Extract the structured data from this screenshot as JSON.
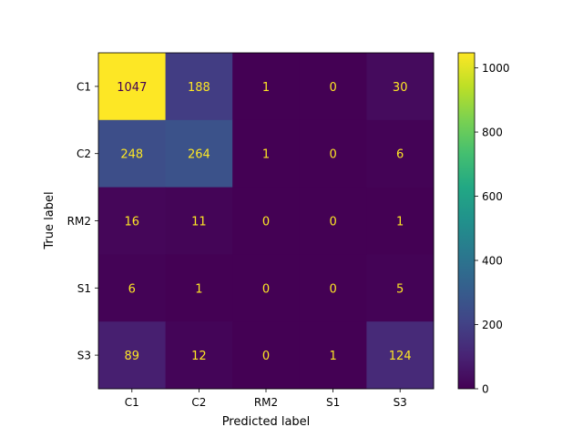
{
  "chart_data": {
    "type": "heatmap",
    "title": "",
    "xlabel": "Predicted label",
    "ylabel": "True label",
    "x_categories": [
      "C1",
      "C2",
      "RM2",
      "S1",
      "S3"
    ],
    "y_categories": [
      "C1",
      "C2",
      "RM2",
      "S1",
      "S3"
    ],
    "values": [
      [
        1047,
        188,
        1,
        0,
        30
      ],
      [
        248,
        264,
        1,
        0,
        6
      ],
      [
        16,
        11,
        0,
        0,
        1
      ],
      [
        6,
        1,
        0,
        0,
        5
      ],
      [
        89,
        12,
        0,
        1,
        124
      ]
    ],
    "colormap": "viridis",
    "vmin": 0,
    "vmax": 1047,
    "colorbar_ticks": [
      0,
      200,
      400,
      600,
      800,
      1000
    ],
    "text_color_light": "#fde725",
    "text_color_dark": "#440154"
  }
}
